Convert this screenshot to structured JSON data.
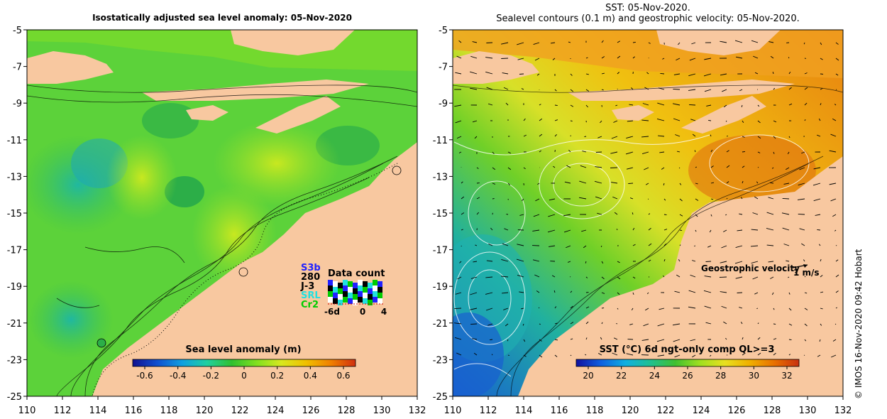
{
  "left_panel": {
    "title": "Isostatically adjusted sea level anomaly: 05-Nov-2020",
    "colorbar": {
      "label": "Sea level anomaly (m)",
      "ticks": [
        "-0.6",
        "-0.4",
        "-0.2",
        "0",
        "0.2",
        "0.4",
        "0.6"
      ],
      "colors": [
        "#101090",
        "#1050d0",
        "#10a0e0",
        "#20d0a0",
        "#30c030",
        "#80e020",
        "#d8e820",
        "#f0c000",
        "#f08000",
        "#d03010"
      ]
    },
    "data_count": {
      "title": "Data count",
      "missions": [
        {
          "label": "S3b",
          "color": "#2020ff"
        },
        {
          "label": "280",
          "color": "#000000"
        },
        {
          "label": "J-3",
          "color": "#000000"
        },
        {
          "label": "SRL",
          "color": "#20e0e0"
        },
        {
          "label": "Cr2",
          "color": "#00cc00"
        }
      ],
      "ticks": [
        "-6d",
        "0",
        "4"
      ]
    }
  },
  "right_panel": {
    "title_line1": "SST: 05-Nov-2020.",
    "title_line2": "Sealevel contours (0.1 m) and geostrophic velocity: 05-Nov-2020.",
    "velocity_legend": "Geostrophic velocity",
    "velocity_scale": "1 m/s",
    "colorbar": {
      "label": "SST (°C) 6d ngt-only comp QL>=3",
      "ticks": [
        "20",
        "22",
        "24",
        "26",
        "28",
        "30",
        "32"
      ],
      "colors": [
        "#1010a0",
        "#1060e0",
        "#10b0e0",
        "#20c090",
        "#40c030",
        "#a0e020",
        "#e8e020",
        "#f0b000",
        "#e87000",
        "#c83010"
      ]
    }
  },
  "axes": {
    "x_ticks": [
      "110",
      "112",
      "114",
      "116",
      "118",
      "120",
      "122",
      "124",
      "126",
      "128",
      "130",
      "132"
    ],
    "y_ticks": [
      "-5",
      "-7",
      "-9",
      "-11",
      "-13",
      "-15",
      "-17",
      "-19",
      "-21",
      "-23",
      "-25"
    ]
  },
  "credit": "© IMOS 16-Nov-2020 09:42 Hobart",
  "colors": {
    "land": "#f8c8a0",
    "sla_green": "#5cd23a",
    "sla_light": "#98e028",
    "sla_dark": "#2cae48",
    "sst_orange": "#f0a020",
    "sst_yellow": "#d8e030",
    "sst_blue": "#2a7ad8"
  }
}
